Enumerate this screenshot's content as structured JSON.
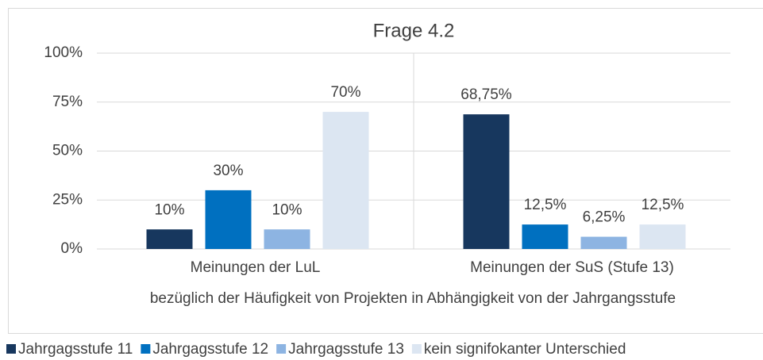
{
  "chart_data": {
    "type": "bar",
    "title": "Frage 4.2",
    "x_label": "bezüglich der Häufigkeit von Projekten in Abhängigkeit von der Jahrgangsstufe",
    "categories": [
      "Meinungen der LuL",
      "Meinungen der SuS (Stufe 13)"
    ],
    "series": [
      {
        "name": "Jahrgagsstufe 11",
        "color": "#17375e",
        "values": [
          10,
          68.75
        ],
        "value_labels": [
          "10%",
          "68,75%"
        ]
      },
      {
        "name": "Jahrgagsstufe 12",
        "color": "#0070c0",
        "values": [
          30,
          12.5
        ],
        "value_labels": [
          "30%",
          "12,5%"
        ]
      },
      {
        "name": "Jahrgagsstufe 13",
        "color": "#8db4e2",
        "values": [
          10,
          6.25
        ],
        "value_labels": [
          "10%",
          "6,25%"
        ]
      },
      {
        "name": "kein signifokanter Unterschied",
        "color": "#dce6f2",
        "values": [
          70,
          12.5
        ],
        "value_labels": [
          "70%",
          "12,5%"
        ]
      }
    ],
    "ylim": [
      0,
      100
    ],
    "yticks": [
      {
        "value": 0,
        "label": "0%"
      },
      {
        "value": 25,
        "label": "25%"
      },
      {
        "value": 50,
        "label": "50%"
      },
      {
        "value": 75,
        "label": "75%"
      },
      {
        "value": 100,
        "label": "100%"
      }
    ],
    "grid": true,
    "legend": "bottom"
  }
}
